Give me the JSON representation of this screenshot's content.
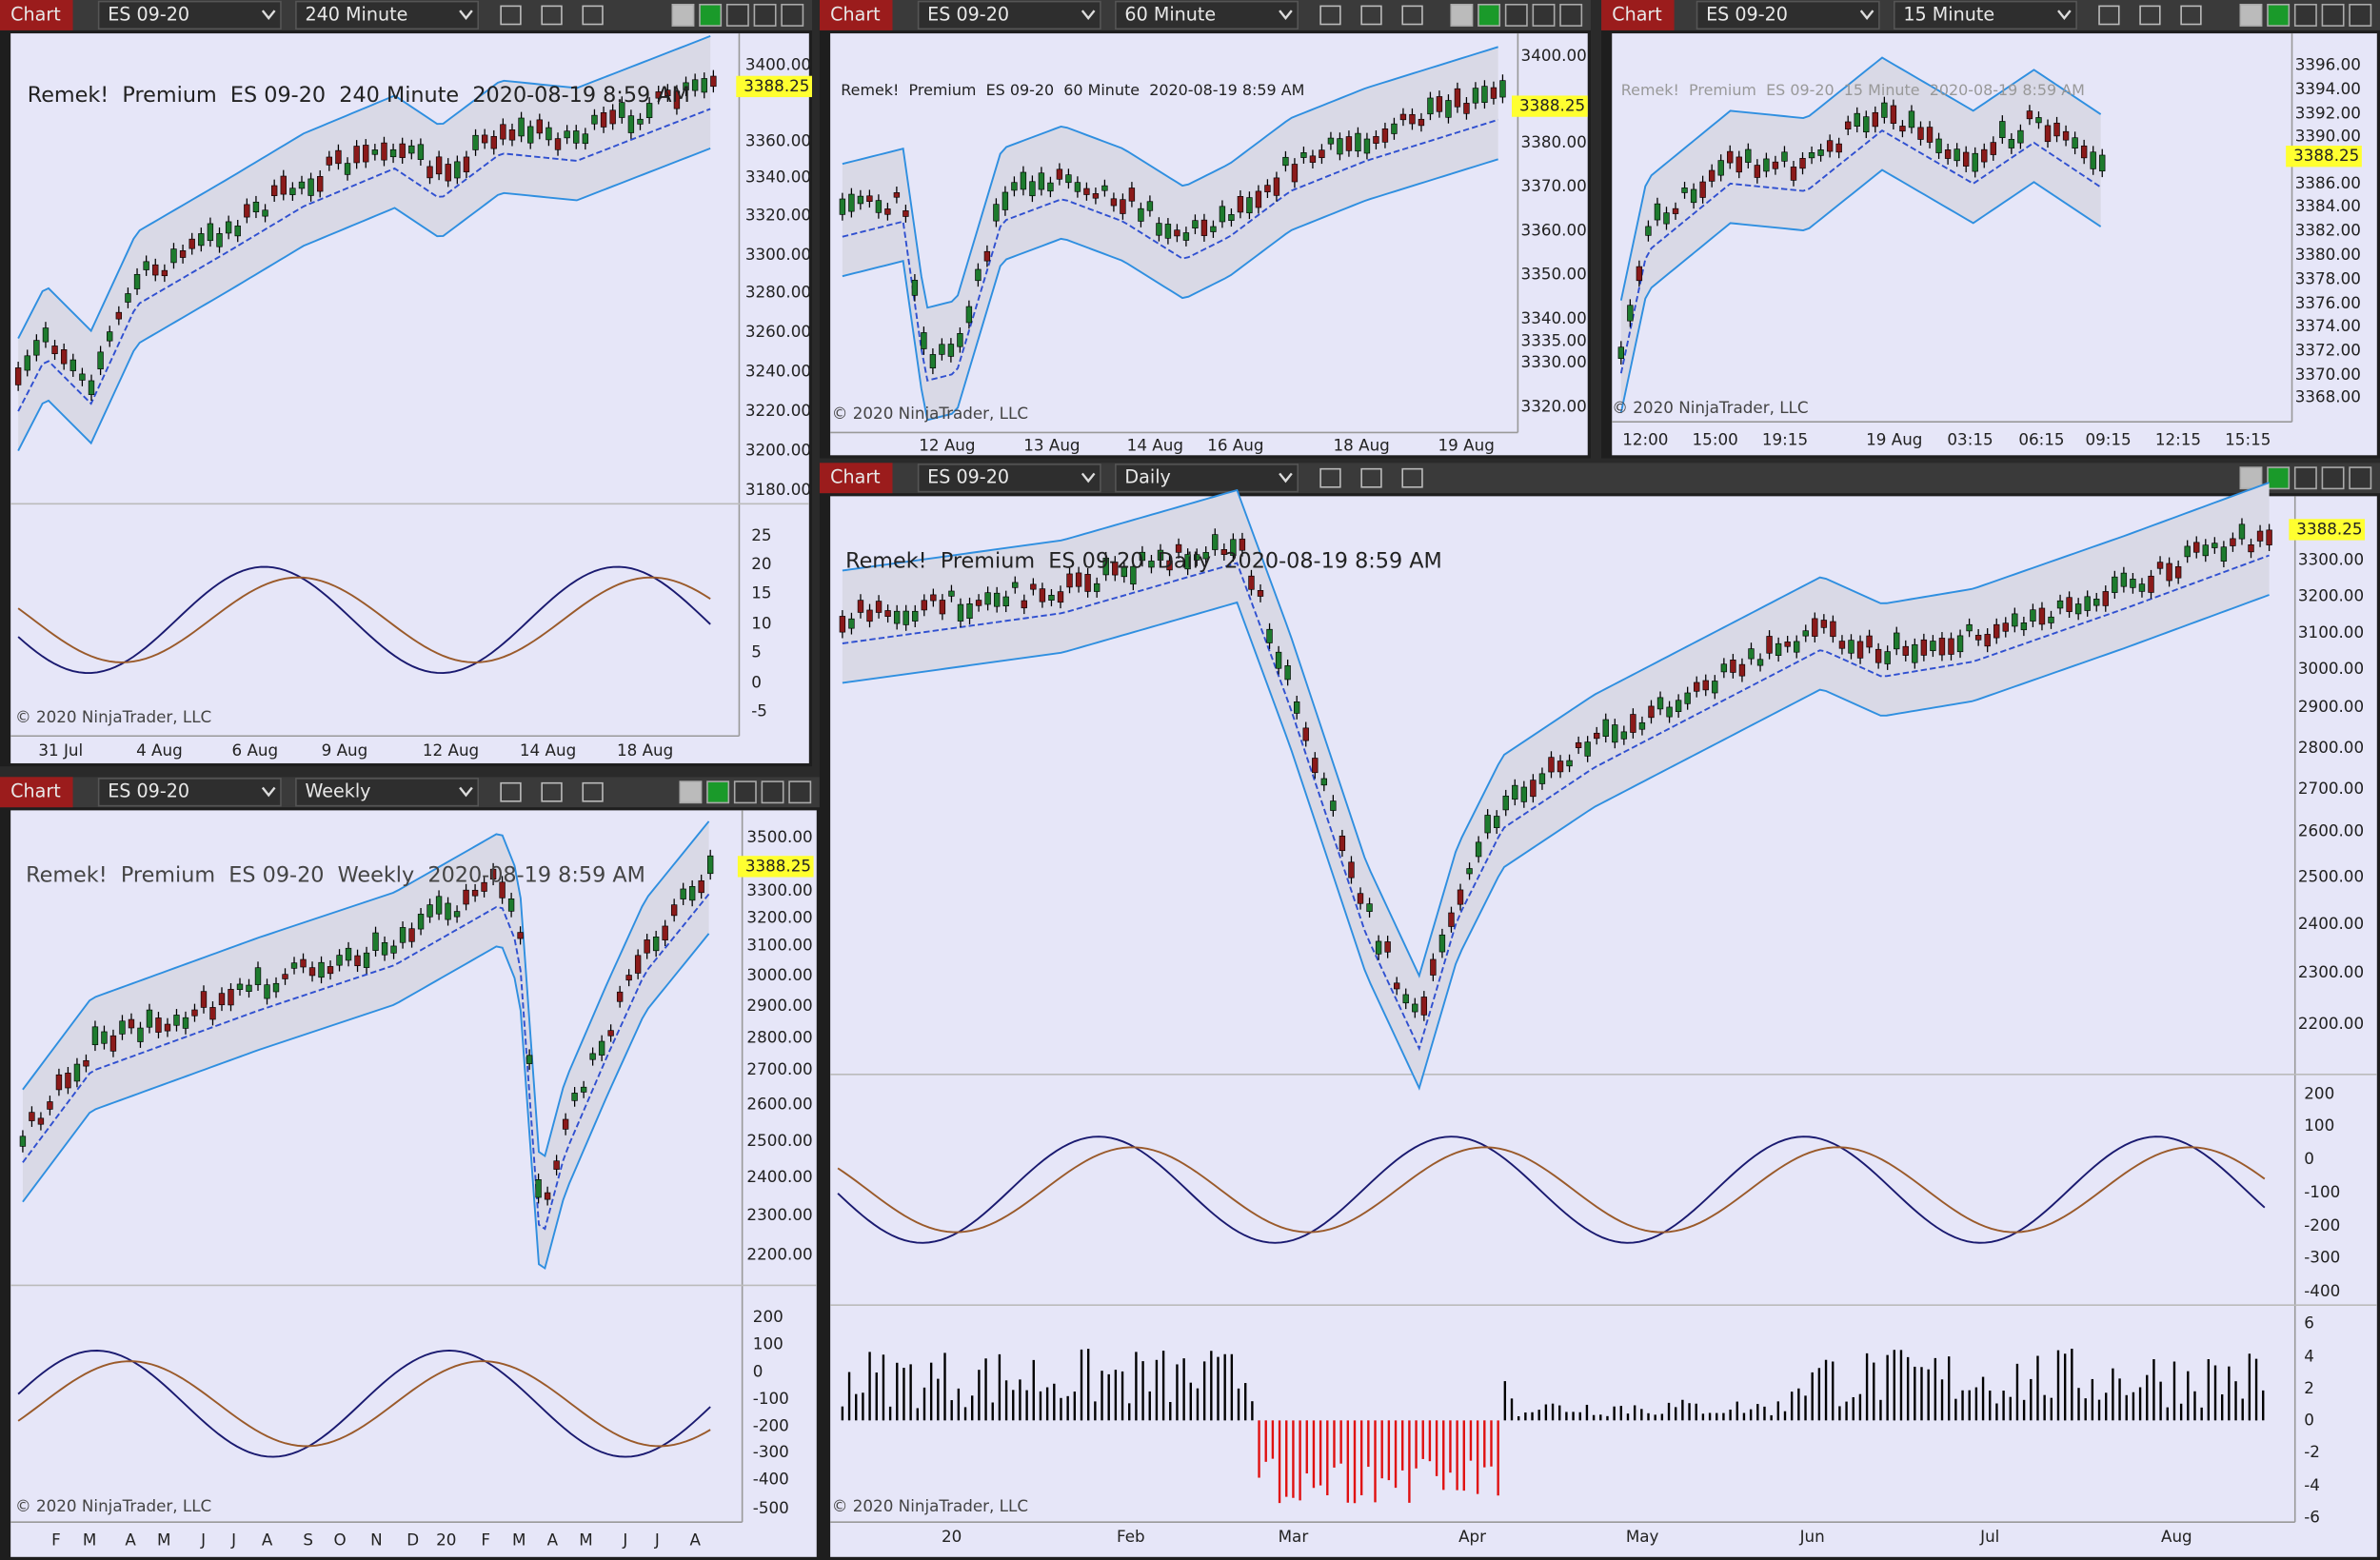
{
  "panels": [
    {
      "tab": "Chart",
      "instrument": "ES 09-20",
      "timeframe": "240 Minute",
      "overlay": "Remek!  Premium  ES 09-20  240 Minute  2020-08-19 8:59 AM",
      "copyright": "© 2020 NinjaTrader, LLC",
      "price_badge": "3388.25",
      "price_ticks": [
        "3400.00",
        "3360.00",
        "3340.00",
        "3320.00",
        "3300.00",
        "3280.00",
        "3260.00",
        "3240.00",
        "3220.00",
        "3200.00",
        "3180.00"
      ],
      "indicator_ticks": [
        "25",
        "20",
        "15",
        "10",
        "5",
        "0",
        "-5"
      ],
      "x_labels": [
        "31 Jul",
        "4 Aug",
        "6 Aug",
        "9 Aug",
        "12 Aug",
        "14 Aug",
        "18 Aug"
      ]
    },
    {
      "tab": "Chart",
      "instrument": "ES 09-20",
      "timeframe": "60 Minute",
      "overlay": "Remek!  Premium  ES 09-20  60 Minute  2020-08-19 8:59 AM",
      "copyright": "© 2020 NinjaTrader, LLC",
      "price_badge": "3388.25",
      "price_ticks": [
        "3400.00",
        "3380.00",
        "3370.00",
        "3360.00",
        "3350.00",
        "3340.00",
        "3335.00",
        "3330.00",
        "3320.00"
      ],
      "x_labels": [
        "12 Aug",
        "13 Aug",
        "14 Aug",
        "16 Aug",
        "18 Aug",
        "19 Aug"
      ]
    },
    {
      "tab": "Chart",
      "instrument": "ES 09-20",
      "timeframe": "15 Minute",
      "overlay": "Remek!  Premium  ES 09-20  15 Minute  2020-08-19 8:59 AM",
      "copyright": "© 2020 NinjaTrader, LLC",
      "price_badge": "3388.25",
      "price_ticks": [
        "3396.00",
        "3394.00",
        "3392.00",
        "3390.00",
        "3386.00",
        "3384.00",
        "3382.00",
        "3380.00",
        "3378.00",
        "3376.00",
        "3374.00",
        "3372.00",
        "3370.00",
        "3368.00"
      ],
      "x_labels": [
        "12:00",
        "15:00",
        "19:15",
        "19 Aug",
        "03:15",
        "06:15",
        "09:15",
        "12:15",
        "15:15"
      ]
    },
    {
      "tab": "Chart",
      "instrument": "ES 09-20",
      "timeframe": "Weekly",
      "overlay": "Remek!  Premium  ES 09-20  Weekly  2020-08-19 8:59 AM",
      "copyright": "© 2020 NinjaTrader, LLC",
      "price_badge": "3388.25",
      "price_ticks": [
        "3500.00",
        "3300.00",
        "3200.00",
        "3100.00",
        "3000.00",
        "2900.00",
        "2800.00",
        "2700.00",
        "2600.00",
        "2500.00",
        "2400.00",
        "2300.00",
        "2200.00"
      ],
      "indicator_ticks": [
        "200",
        "100",
        "0",
        "-100",
        "-200",
        "-300",
        "-400",
        "-500"
      ],
      "x_labels": [
        "F",
        "M",
        "A",
        "M",
        "J",
        "J",
        "A",
        "S",
        "O",
        "N",
        "D",
        "20",
        "F",
        "M",
        "A",
        "M",
        "J",
        "J",
        "A"
      ]
    },
    {
      "tab": "Chart",
      "instrument": "ES 09-20",
      "timeframe": "Daily",
      "overlay": "Remek!  Premium  ES 09-20  Daily  2020-08-19 8:59 AM",
      "copyright": "© 2020 NinjaTrader, LLC",
      "price_badge": "3388.25",
      "price_ticks": [
        "3300.00",
        "3200.00",
        "3100.00",
        "3000.00",
        "2900.00",
        "2800.00",
        "2700.00",
        "2600.00",
        "2500.00",
        "2400.00",
        "2300.00",
        "2200.00"
      ],
      "indicator_ticks": [
        "200",
        "100",
        "0",
        "-100",
        "-200",
        "-300",
        "-400"
      ],
      "histogram_ticks": [
        "6",
        "4",
        "2",
        "0",
        "-2",
        "-4",
        "-6"
      ],
      "x_labels": [
        "20",
        "Feb",
        "Mar",
        "Apr",
        "May",
        "Jun",
        "Jul",
        "Aug"
      ]
    }
  ]
}
